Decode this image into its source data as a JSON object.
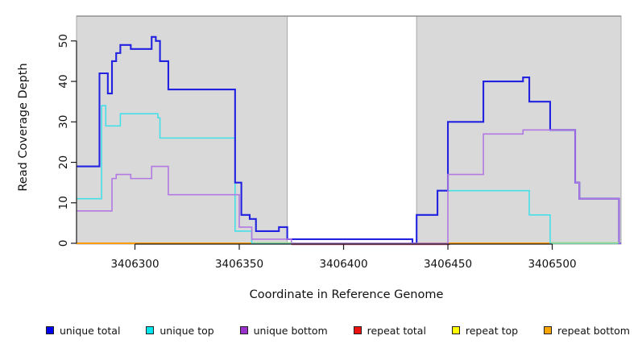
{
  "figure": {
    "background": "#ffffff",
    "panel_bg": "#d9d9d9",
    "panel_edge": "#a8a8a8",
    "panel_top_border": "#8f8f8f",
    "axis_color": "#1a1a1a"
  },
  "axes": {
    "xlabel": "Coordinate in Reference Genome",
    "ylabel": "Read Coverage Depth",
    "x_ticks": [
      3406300,
      3406350,
      3406400,
      3406450,
      3406500
    ],
    "y_ticks": [
      0,
      10,
      20,
      30,
      40,
      50
    ],
    "x_range": [
      3406272,
      3406533
    ],
    "y_range": [
      0,
      56.2
    ],
    "grid": "off",
    "legend_position": "bottom"
  },
  "regions": {
    "note": "gray panels = masked/repeat-flanked intervals, white gap = unmasked interval",
    "gray": [
      [
        3406272,
        3406373
      ],
      [
        3406435,
        3406533
      ]
    ],
    "white": [
      [
        3406373,
        3406435
      ]
    ]
  },
  "chart_data": {
    "type": "line",
    "title": "",
    "xlabel": "Coordinate in Reference Genome",
    "ylabel": "Read Coverage Depth",
    "x_end": 3406533,
    "series": [
      {
        "name": "unique_top",
        "label": "unique top",
        "line_color": "#45dfe8",
        "width": 1.6,
        "steps": [
          [
            3406272,
            11
          ],
          [
            3406284,
            34
          ],
          [
            3406286,
            29
          ],
          [
            3406293,
            32
          ],
          [
            3406311,
            31
          ],
          [
            3406312,
            26
          ],
          [
            3406348,
            3
          ],
          [
            3406356,
            0
          ],
          [
            3406435,
            7
          ],
          [
            3406445,
            13
          ],
          [
            3406489,
            7
          ],
          [
            3406499,
            0
          ]
        ]
      },
      {
        "name": "unique_total",
        "label": "unique total",
        "line_color": "#2222e0",
        "width": 2.1,
        "steps": [
          [
            3406272,
            19
          ],
          [
            3406283,
            42
          ],
          [
            3406287,
            37
          ],
          [
            3406289,
            45
          ],
          [
            3406291,
            47
          ],
          [
            3406293,
            49
          ],
          [
            3406298,
            48
          ],
          [
            3406308,
            51
          ],
          [
            3406310,
            50
          ],
          [
            3406312,
            45
          ],
          [
            3406316,
            38
          ],
          [
            3406348,
            15
          ],
          [
            3406351,
            7
          ],
          [
            3406355,
            6
          ],
          [
            3406358,
            3
          ],
          [
            3406369,
            4
          ],
          [
            3406373,
            1
          ],
          [
            3406433,
            0
          ],
          [
            3406435,
            7
          ],
          [
            3406445,
            13
          ],
          [
            3406450,
            30
          ],
          [
            3406467,
            40
          ],
          [
            3406486,
            41
          ],
          [
            3406489,
            35
          ],
          [
            3406499,
            28
          ],
          [
            3406511,
            15
          ],
          [
            3406513,
            11
          ],
          [
            3406532,
            0
          ]
        ]
      },
      {
        "name": "unique_bottom",
        "label": "unique bottom",
        "line_color": "#b279e2",
        "width": 1.6,
        "steps": [
          [
            3406272,
            8
          ],
          [
            3406289,
            16
          ],
          [
            3406291,
            17
          ],
          [
            3406298,
            16
          ],
          [
            3406308,
            19
          ],
          [
            3406316,
            12
          ],
          [
            3406350,
            4
          ],
          [
            3406356,
            1
          ],
          [
            3406375,
            0
          ],
          [
            3406450,
            17
          ],
          [
            3406467,
            27
          ],
          [
            3406486,
            28
          ],
          [
            3406499,
            28
          ],
          [
            3406511,
            15
          ],
          [
            3406513,
            11
          ],
          [
            3406532,
            0
          ]
        ]
      },
      {
        "name": "repeat_total",
        "label": "repeat total",
        "line_color": "#ee1111",
        "width": 1.6,
        "steps": [
          [
            3406272,
            0
          ]
        ]
      },
      {
        "name": "repeat_top",
        "label": "repeat top",
        "line_color": "#ffff00",
        "width": 1.6,
        "steps": [
          [
            3406272,
            0
          ]
        ]
      },
      {
        "name": "repeat_bottom",
        "label": "repeat bottom",
        "line_color": "#ff9d00",
        "width": 2,
        "steps": [
          [
            3406272,
            0
          ]
        ]
      }
    ],
    "baseline_overlays": [
      {
        "color": "#93d793",
        "from": 3406357,
        "to": 3406375,
        "dy": -0.7,
        "width": 1.4
      },
      {
        "color": "#e0558a",
        "from": 3406375,
        "to": 3406451,
        "dy": 1.4,
        "width": 1.8
      },
      {
        "color": "#93d793",
        "from": 3406499,
        "to": 3406532,
        "dy": -0.7,
        "width": 1.4
      }
    ]
  },
  "legend": {
    "items": [
      {
        "name": "unique_total",
        "label": "unique total",
        "color": "#0000ee"
      },
      {
        "name": "unique_top",
        "label": "unique top",
        "color": "#00e5ee"
      },
      {
        "name": "unique_bottom",
        "label": "unique bottom",
        "color": "#9932cc"
      },
      {
        "name": "repeat_total",
        "label": "repeat total",
        "color": "#ee1111"
      },
      {
        "name": "repeat_top",
        "label": "repeat top",
        "color": "#ffff00"
      },
      {
        "name": "repeat_bottom",
        "label": "repeat bottom",
        "color": "#ffa500"
      }
    ]
  }
}
